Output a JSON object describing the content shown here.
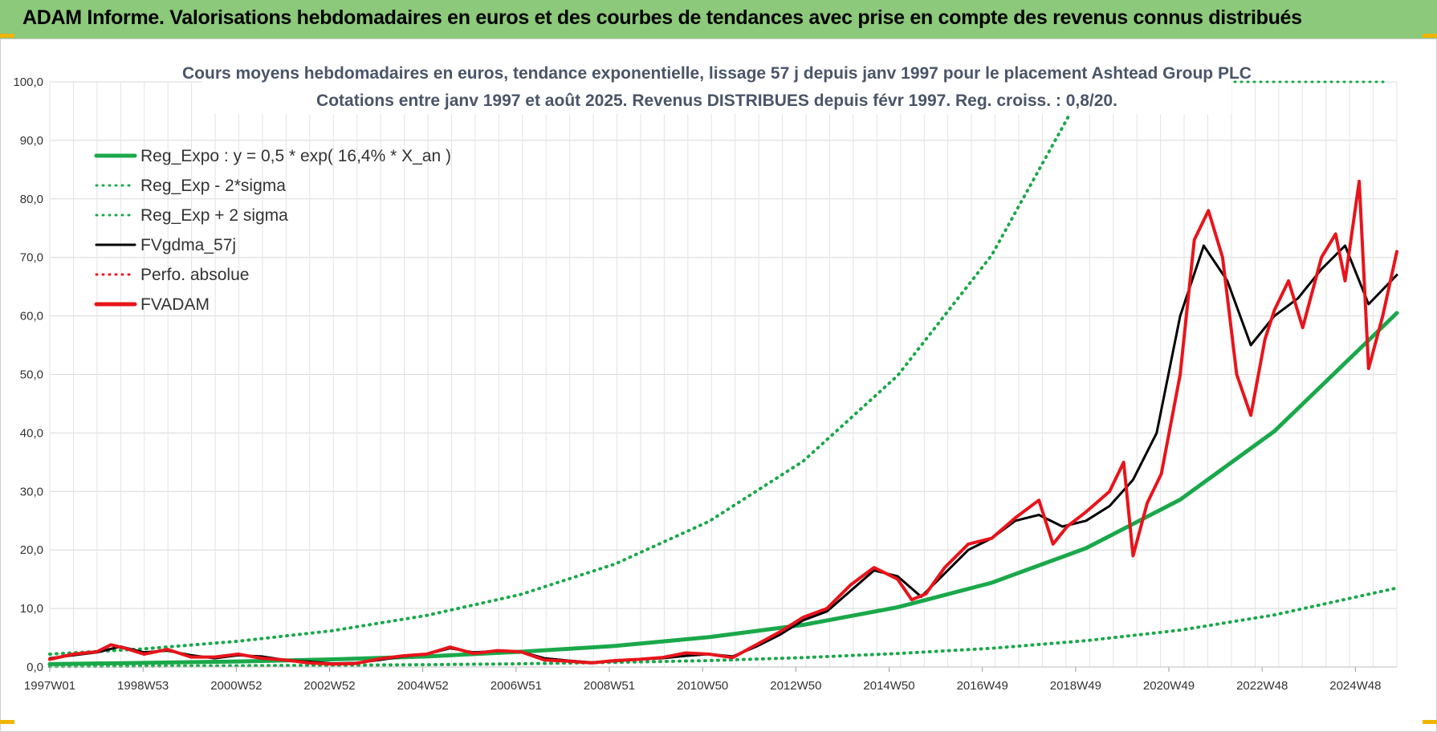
{
  "header": {
    "title": "ADAM Informe. Valorisations hebdomadaires en euros et des courbes de tendances avec prise en compte des revenus connus distribués"
  },
  "colors": {
    "banner": "#8cc97a",
    "green": "#1aa84a",
    "red": "#e8141b",
    "black": "#000000",
    "grid": "#d9d9d9"
  },
  "chart_data": {
    "type": "line",
    "title_line1": "Cours moyens hebdomadaires en euros, tendance exponentielle, lissage 57 j depuis janv 1997 pour le placement Ashtead Group PLC",
    "title_line2": "Cotations entre janv 1997 et août 2025. Revenus DISTRIBUES depuis févr 1997. Reg. croiss. : 0,8/20.",
    "ylim": [
      0,
      100
    ],
    "y_ticks": [
      "0,0",
      "10,0",
      "20,0",
      "30,0",
      "40,0",
      "50,0",
      "60,0",
      "70,0",
      "80,0",
      "90,0",
      "100,0"
    ],
    "x_tick_labels": [
      "1997W01",
      "1998W53",
      "2000W52",
      "2002W52",
      "2004W52",
      "2006W51",
      "2008W51",
      "2010W50",
      "2012W50",
      "2014W50",
      "2016W49",
      "2018W49",
      "2020W49",
      "2022W48",
      "2024W48"
    ],
    "x_range_years": [
      1997.0,
      2025.6
    ],
    "grid": true,
    "legend_position": "top-left",
    "legend": [
      {
        "label": "Reg_Expo : y = 0,5 * exp( 16,4% *  X_an )",
        "color": "#1aa84a",
        "style": "solid-thick"
      },
      {
        "label": "Reg_Exp - 2*sigma",
        "color": "#1aa84a",
        "style": "dotted"
      },
      {
        "label": "Reg_Exp + 2 sigma",
        "color": "#1aa84a",
        "style": "dotted"
      },
      {
        "label": "FVgdma_57j",
        "color": "#000000",
        "style": "solid"
      },
      {
        "label": "Perfo. absolue",
        "color": "#e8141b",
        "style": "dotted"
      },
      {
        "label": "FVADAM",
        "color": "#e8141b",
        "style": "solid-thick"
      }
    ],
    "series": [
      {
        "name": "Reg_Expo : y = 0,5 * exp( 16,4% *  X_an )",
        "x": [
          1997,
          1999,
          2001,
          2003,
          2005,
          2007,
          2009,
          2011,
          2013,
          2015,
          2017,
          2019,
          2021,
          2023,
          2025.6
        ],
        "y": [
          0.5,
          0.7,
          0.95,
          1.3,
          1.8,
          2.6,
          3.6,
          5.1,
          7.2,
          10.2,
          14.4,
          20.3,
          28.6,
          40.3,
          60.5
        ]
      },
      {
        "name": "Reg_Exp - 2*sigma",
        "x": [
          1997,
          1999,
          2001,
          2003,
          2005,
          2007,
          2009,
          2011,
          2013,
          2015,
          2017,
          2019,
          2021,
          2023,
          2025.6
        ],
        "y": [
          0.1,
          0.15,
          0.2,
          0.3,
          0.4,
          0.55,
          0.8,
          1.1,
          1.6,
          2.3,
          3.2,
          4.5,
          6.3,
          8.9,
          13.5
        ]
      },
      {
        "name": "Reg_Exp + 2 sigma",
        "x": [
          1997,
          1999,
          2001,
          2003,
          2005,
          2007,
          2009,
          2011,
          2013,
          2015,
          2017,
          2019,
          2019.5
        ],
        "y": [
          2.2,
          3.1,
          4.4,
          6.2,
          8.8,
          12.4,
          17.6,
          24.9,
          35.2,
          49.8,
          70.4,
          99.5,
          100
        ]
      },
      {
        "name": "FVgdma_57j",
        "x": [
          1997,
          1997.5,
          1998,
          1998.5,
          1999,
          1999.5,
          2000,
          2000.5,
          2001,
          2001.5,
          2002,
          2002.5,
          2003,
          2003.5,
          2004,
          2004.5,
          2005,
          2005.5,
          2006,
          2006.5,
          2007,
          2007.5,
          2008,
          2008.5,
          2009,
          2009.5,
          2010,
          2010.5,
          2011,
          2011.5,
          2012,
          2012.5,
          2013,
          2013.5,
          2014,
          2014.5,
          2015,
          2015.5,
          2016,
          2016.5,
          2017,
          2017.5,
          2018,
          2018.5,
          2019,
          2019.5,
          2020,
          2020.5,
          2021,
          2021.5,
          2022,
          2022.5,
          2023,
          2023.5,
          2024,
          2024.5,
          2025,
          2025.6
        ],
        "y": [
          1.5,
          2.0,
          2.5,
          3.5,
          2.5,
          2.8,
          2.0,
          1.5,
          2.0,
          1.8,
          1.2,
          0.9,
          0.6,
          0.7,
          1.2,
          1.8,
          2.2,
          3.2,
          2.5,
          2.7,
          2.6,
          1.5,
          1.1,
          0.8,
          1.0,
          1.3,
          1.5,
          1.9,
          2.2,
          1.8,
          3.5,
          5.5,
          8.0,
          9.5,
          13.0,
          16.5,
          15.5,
          12.0,
          16.0,
          20.0,
          22.0,
          25.0,
          26.0,
          24.0,
          25.0,
          27.5,
          32.0,
          40.0,
          60.0,
          72.0,
          66.0,
          55.0,
          60.0,
          63.0,
          68.0,
          72.0,
          62.0,
          67.0
        ]
      },
      {
        "name": "FVADAM",
        "x": [
          1997,
          1997.5,
          1998,
          1998.3,
          1998.6,
          1999,
          1999.5,
          2000,
          2000.5,
          2001,
          2001.5,
          2002,
          2002.5,
          2003,
          2003.5,
          2004,
          2004.5,
          2005,
          2005.5,
          2006,
          2006.5,
          2007,
          2007.5,
          2008,
          2008.5,
          2009,
          2009.5,
          2010,
          2010.5,
          2011,
          2011.5,
          2012,
          2012.5,
          2013,
          2013.5,
          2014,
          2014.5,
          2015,
          2015.3,
          2015.6,
          2016,
          2016.5,
          2017,
          2017.5,
          2018,
          2018.3,
          2018.6,
          2019,
          2019.5,
          2019.8,
          2020,
          2020.3,
          2020.6,
          2021,
          2021.3,
          2021.6,
          2021.9,
          2022.2,
          2022.5,
          2022.8,
          2023,
          2023.3,
          2023.6,
          2024,
          2024.3,
          2024.5,
          2024.8,
          2025,
          2025.3,
          2025.6
        ],
        "y": [
          1.3,
          2.2,
          2.6,
          3.8,
          3.2,
          2.2,
          3.0,
          1.7,
          1.7,
          2.2,
          1.5,
          1.2,
          0.7,
          0.5,
          0.6,
          1.4,
          1.9,
          2.2,
          3.4,
          2.3,
          2.8,
          2.6,
          1.2,
          1.0,
          0.7,
          1.1,
          1.3,
          1.6,
          2.4,
          2.2,
          1.6,
          3.8,
          6.0,
          8.5,
          10.0,
          14.0,
          17.0,
          15.0,
          11.5,
          12.5,
          17.0,
          21.0,
          22.0,
          25.5,
          28.5,
          21.0,
          24.0,
          26.5,
          30.0,
          35.0,
          19.0,
          28.0,
          33.0,
          50.0,
          73.0,
          78.0,
          70.0,
          50.0,
          43.0,
          56.0,
          61.0,
          66.0,
          58.0,
          70.0,
          74.0,
          66.0,
          83.0,
          51.0,
          60.0,
          71.0
        ]
      }
    ]
  }
}
